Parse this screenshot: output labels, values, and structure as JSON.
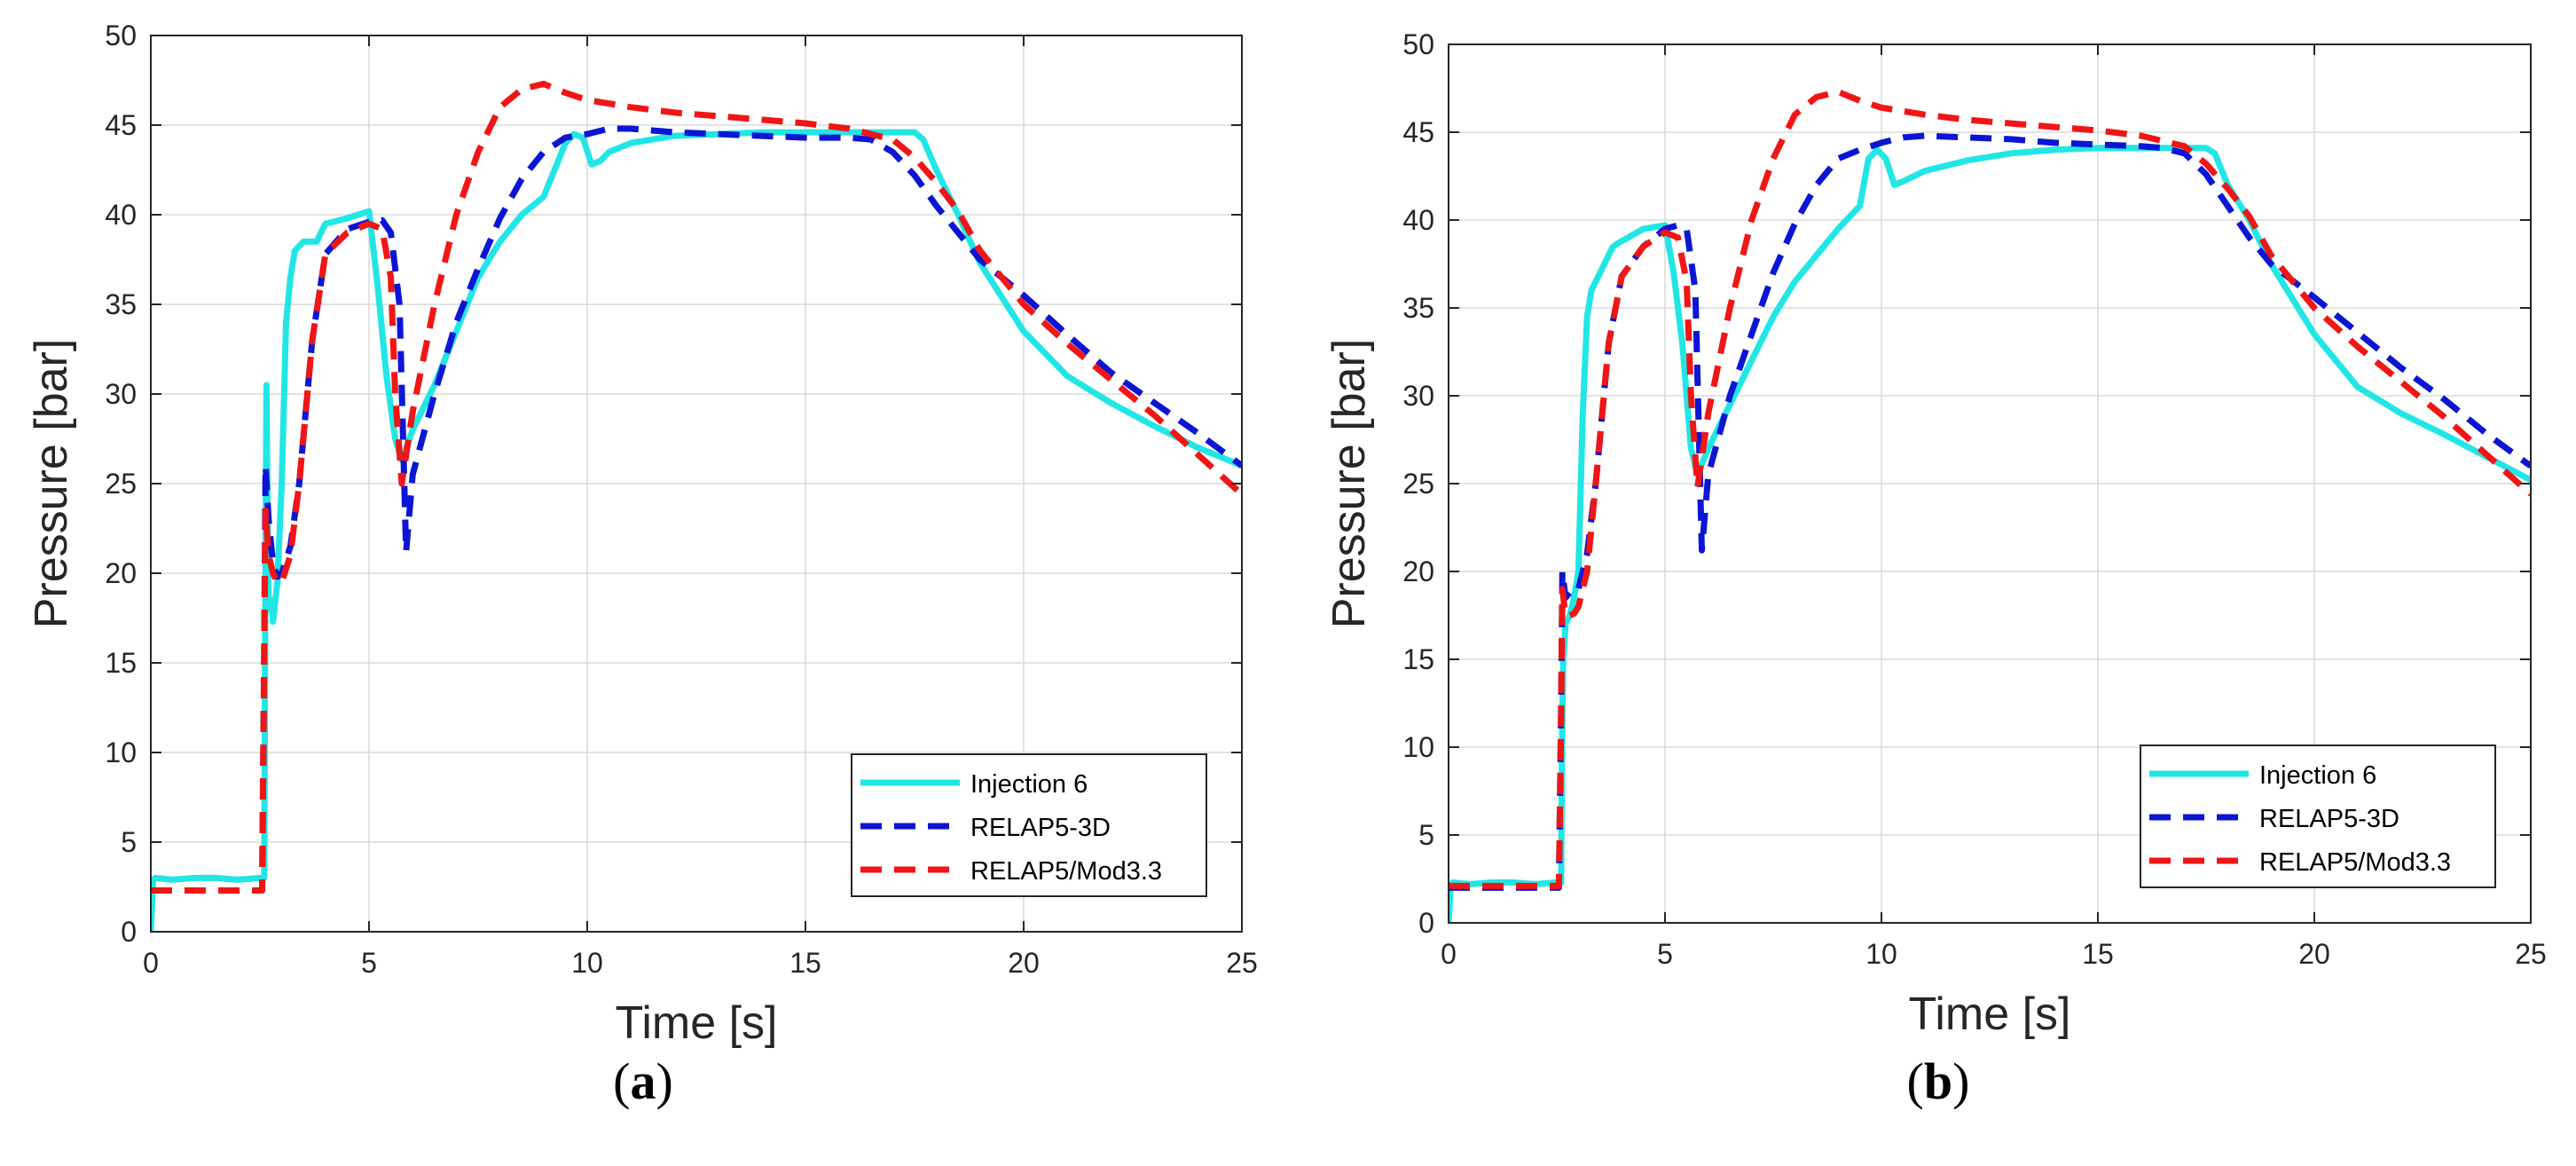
{
  "colors": {
    "injection": "#22E6E6",
    "relap5_3d": "#0B16D4",
    "relap5_mod33": "#F01616",
    "grid": "#DADADA",
    "axis": "#262626"
  },
  "chart_data": [
    {
      "type": "line",
      "panel": "a",
      "caption": "a",
      "xlabel": "Time [s]",
      "ylabel": "Pressure [bar]",
      "xlim": [
        0,
        25
      ],
      "ylim": [
        0,
        50
      ],
      "xticks": [
        "0",
        "5",
        "10",
        "15",
        "20",
        "25"
      ],
      "yticks": [
        "0",
        "5",
        "10",
        "15",
        "20",
        "25",
        "30",
        "35",
        "40",
        "45",
        "50"
      ],
      "grid": true,
      "legend_position": "bottom-right",
      "series": [
        {
          "name": "Injection 6",
          "style": "solid",
          "x": [
            0,
            0.05,
            0.1,
            0.5,
            1.0,
            1.5,
            2.0,
            2.5,
            2.6,
            2.62,
            2.65,
            2.68,
            2.7,
            2.75,
            2.8,
            2.9,
            3.0,
            3.1,
            3.2,
            3.3,
            3.5,
            3.8,
            4.0,
            4.5,
            5.0,
            5.2,
            5.4,
            5.6,
            5.75,
            6.0,
            6.5,
            7.0,
            7.5,
            8.0,
            8.5,
            9.0,
            9.5,
            9.7,
            9.9,
            10.1,
            10.3,
            10.5,
            11.0,
            12.0,
            13.0,
            14.0,
            15.0,
            16.0,
            17.0,
            17.5,
            17.7,
            18.0,
            18.5,
            19.0,
            20.0,
            21.0,
            22.0,
            23.0,
            24.0,
            25.0
          ],
          "y": [
            0,
            2.9,
            3.0,
            2.9,
            3.0,
            3.0,
            2.9,
            3.0,
            3.0,
            16,
            30.5,
            22,
            18,
            18.5,
            17.3,
            19.5,
            25,
            34,
            36.5,
            38,
            38.5,
            38.5,
            39.5,
            39.8,
            40.2,
            36,
            31,
            27.5,
            26.3,
            28,
            30.5,
            33.5,
            36.5,
            38.5,
            40,
            41,
            44,
            44.5,
            44.3,
            42.8,
            43,
            43.5,
            44,
            44.4,
            44.5,
            44.6,
            44.6,
            44.6,
            44.6,
            44.6,
            44.2,
            42.5,
            40,
            37.3,
            33.5,
            31,
            29.5,
            28.2,
            27,
            26
          ]
        },
        {
          "name": "RELAP5-3D",
          "style": "dashed",
          "x": [
            0,
            1.0,
            2.0,
            2.55,
            2.6,
            2.63,
            2.7,
            2.8,
            2.9,
            3.0,
            3.2,
            3.4,
            3.7,
            4.0,
            4.5,
            5.0,
            5.3,
            5.5,
            5.7,
            5.85,
            6.0,
            6.5,
            7.0,
            7.5,
            8.0,
            8.5,
            9.0,
            9.5,
            10.0,
            10.5,
            11.0,
            12.0,
            13.0,
            14.0,
            15.0,
            16.0,
            16.5,
            17.0,
            17.5,
            18.0,
            18.5,
            19.0,
            20.0,
            21.0,
            22.0,
            23.0,
            24.0,
            25.0
          ],
          "y": [
            2.3,
            2.3,
            2.3,
            2.3,
            16,
            26,
            23,
            20.5,
            19.8,
            20,
            21.5,
            25,
            33,
            37.8,
            39.2,
            39.6,
            39.7,
            39,
            35,
            21.2,
            25.5,
            30,
            34,
            37,
            39.8,
            42,
            43.5,
            44.3,
            44.5,
            44.8,
            44.8,
            44.6,
            44.5,
            44.4,
            44.3,
            44.3,
            44.2,
            43.5,
            42.2,
            40.5,
            39,
            37.5,
            35.5,
            33.3,
            31.2,
            29.5,
            27.8,
            26
          ]
        },
        {
          "name": "RELAP5/Mod3.3",
          "style": "dashed",
          "x": [
            0,
            1.0,
            2.0,
            2.55,
            2.6,
            2.63,
            2.7,
            2.8,
            2.9,
            3.0,
            3.2,
            3.4,
            3.7,
            4.0,
            4.5,
            5.0,
            5.3,
            5.5,
            5.6,
            5.75,
            6.0,
            6.5,
            7.0,
            7.5,
            8.0,
            8.5,
            9.0,
            9.5,
            10.0,
            11.0,
            12.0,
            13.0,
            14.0,
            15.0,
            16.0,
            17.0,
            17.5,
            18.0,
            18.5,
            19.0,
            20.0,
            21.0,
            22.0,
            23.0,
            24.0,
            25.0
          ],
          "y": [
            2.3,
            2.3,
            2.3,
            2.3,
            16,
            23.5,
            21,
            20,
            19.5,
            19.5,
            21,
            25,
            33,
            37.8,
            39,
            39.5,
            39.2,
            36.5,
            30,
            25,
            29,
            35,
            40,
            43.5,
            46,
            47,
            47.3,
            46.8,
            46.4,
            46,
            45.7,
            45.5,
            45.3,
            45.1,
            44.8,
            44.2,
            43.2,
            41.8,
            40.2,
            38,
            35,
            32.8,
            30.8,
            28.8,
            26.6,
            24.4
          ]
        }
      ]
    },
    {
      "type": "line",
      "panel": "b",
      "caption": "b",
      "xlabel": "Time [s]",
      "ylabel": "Pressure [bar]",
      "xlim": [
        0,
        25
      ],
      "ylim": [
        0,
        50
      ],
      "xticks": [
        "0",
        "5",
        "10",
        "15",
        "20",
        "25"
      ],
      "yticks": [
        "0",
        "5",
        "10",
        "15",
        "20",
        "25",
        "30",
        "35",
        "40",
        "45",
        "50"
      ],
      "grid": true,
      "legend_position": "bottom-right",
      "series": [
        {
          "name": "Injection 6",
          "style": "solid",
          "x": [
            0,
            0.05,
            0.1,
            0.5,
            1.0,
            1.5,
            2.0,
            2.5,
            2.6,
            2.62,
            2.65,
            2.68,
            2.7,
            2.8,
            2.9,
            3.0,
            3.1,
            3.2,
            3.3,
            3.5,
            3.8,
            4.0,
            4.5,
            5.0,
            5.2,
            5.4,
            5.6,
            5.75,
            6.0,
            6.5,
            7.0,
            7.5,
            8.0,
            8.5,
            9.0,
            9.5,
            9.7,
            9.9,
            10.1,
            10.3,
            10.5,
            11.0,
            12.0,
            13.0,
            14.0,
            15.0,
            16.0,
            17.0,
            17.5,
            17.7,
            18.0,
            18.5,
            19.0,
            20.0,
            21.0,
            22.0,
            23.0,
            24.0,
            25.0
          ],
          "y": [
            0,
            2.2,
            2.3,
            2.2,
            2.3,
            2.3,
            2.2,
            2.3,
            2.3,
            10,
            15,
            16,
            17,
            17.5,
            18.5,
            20,
            29,
            34.5,
            36,
            37,
            38.5,
            38.8,
            39.5,
            39.7,
            37,
            33,
            27,
            25.5,
            27,
            29.5,
            32,
            34.5,
            36.5,
            38,
            39.5,
            40.8,
            43.5,
            44,
            43.5,
            42,
            42.2,
            42.8,
            43.4,
            43.8,
            44,
            44.1,
            44.1,
            44.1,
            44.1,
            43.8,
            42,
            40,
            37.5,
            33.5,
            30.5,
            29,
            27.8,
            26.5,
            25.2
          ]
        },
        {
          "name": "RELAP5-3D",
          "style": "dashed",
          "x": [
            0,
            1.0,
            2.0,
            2.55,
            2.6,
            2.63,
            2.7,
            2.8,
            2.9,
            3.0,
            3.2,
            3.4,
            3.7,
            4.0,
            4.5,
            5.0,
            5.3,
            5.5,
            5.7,
            5.85,
            6.0,
            6.5,
            7.0,
            7.5,
            8.0,
            8.5,
            9.0,
            9.5,
            10.0,
            10.5,
            11.0,
            12.0,
            13.0,
            14.0,
            15.0,
            16.0,
            16.5,
            17.0,
            17.5,
            18.0,
            18.5,
            19.0,
            20.0,
            21.0,
            22.0,
            23.0,
            24.0,
            25.0
          ],
          "y": [
            2.0,
            2.0,
            2.0,
            2.0,
            12,
            20,
            18.5,
            18.8,
            18.7,
            19,
            21,
            25,
            33,
            36.8,
            38.5,
            39.5,
            39.7,
            39.5,
            36,
            21.2,
            25.5,
            30,
            33.5,
            37,
            39.8,
            42,
            43.5,
            44,
            44.4,
            44.7,
            44.8,
            44.7,
            44.6,
            44.4,
            44.3,
            44.2,
            44.1,
            43.8,
            42.6,
            40.8,
            39,
            37.5,
            35.6,
            33.6,
            31.6,
            29.8,
            27.8,
            26
          ]
        },
        {
          "name": "RELAP5/Mod3.3",
          "style": "dashed",
          "x": [
            0,
            1.0,
            2.0,
            2.55,
            2.6,
            2.63,
            2.7,
            2.8,
            2.9,
            3.0,
            3.2,
            3.4,
            3.7,
            4.0,
            4.5,
            5.0,
            5.3,
            5.5,
            5.6,
            5.75,
            6.0,
            6.5,
            7.0,
            7.5,
            8.0,
            8.5,
            9.0,
            9.5,
            10.0,
            11.0,
            12.0,
            13.0,
            14.0,
            15.0,
            16.0,
            17.0,
            17.5,
            18.0,
            18.5,
            19.0,
            20.0,
            21.0,
            22.0,
            23.0,
            24.0,
            25.0
          ],
          "y": [
            2.1,
            2.1,
            2.1,
            2.1,
            12,
            19,
            17.5,
            17.5,
            17.6,
            18,
            20,
            25,
            33,
            36.8,
            38.5,
            39.3,
            39,
            36.5,
            30,
            24.8,
            29,
            35,
            40,
            43.5,
            46,
            47,
            47.3,
            46.8,
            46.4,
            46,
            45.7,
            45.5,
            45.3,
            45.1,
            44.8,
            44.2,
            43.2,
            41.8,
            40.2,
            38,
            35,
            32.8,
            30.8,
            28.8,
            26.6,
            24.4
          ]
        }
      ]
    }
  ]
}
